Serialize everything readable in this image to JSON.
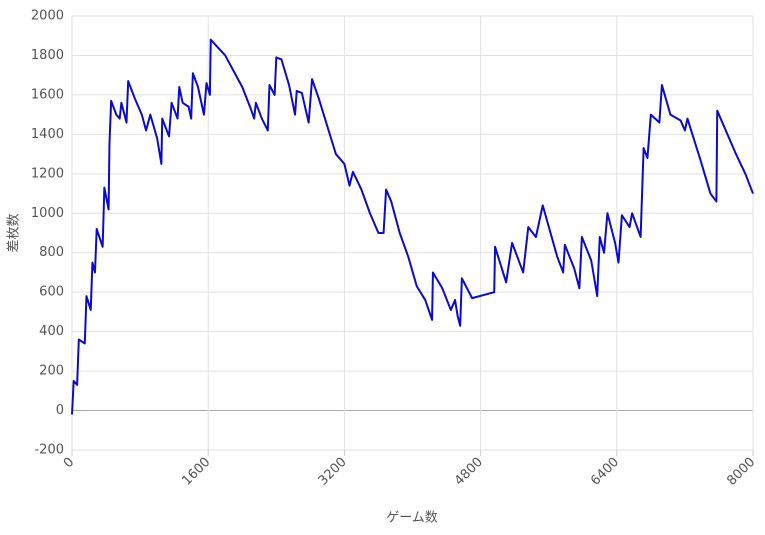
{
  "chart_data": {
    "type": "line",
    "x_label": "ゲーム数",
    "y_label": "差枚数",
    "xlim": [
      0,
      8000
    ],
    "xticks": [
      0,
      1600,
      3200,
      4800,
      6400,
      8000
    ],
    "ylim": [
      -200,
      2000
    ],
    "yticks": [
      -200,
      0,
      200,
      400,
      600,
      800,
      1000,
      1200,
      1400,
      1600,
      1800,
      2000
    ],
    "grid": true,
    "x": [
      0,
      20,
      60,
      80,
      150,
      170,
      220,
      240,
      270,
      290,
      360,
      380,
      430,
      440,
      460,
      520,
      560,
      580,
      640,
      660,
      740,
      820,
      870,
      920,
      1000,
      1050,
      1060,
      1140,
      1170,
      1240,
      1260,
      1300,
      1370,
      1400,
      1420,
      1480,
      1550,
      1580,
      1620,
      1630,
      1800,
      1900,
      2000,
      2100,
      2140,
      2160,
      2230,
      2300,
      2320,
      2380,
      2400,
      2460,
      2550,
      2620,
      2640,
      2700,
      2780,
      2820,
      2900,
      3000,
      3100,
      3200,
      3260,
      3300,
      3400,
      3500,
      3600,
      3660,
      3690,
      3750,
      3850,
      3950,
      4050,
      4150,
      4230,
      4240,
      4350,
      4450,
      4500,
      4530,
      4560,
      4580,
      4700,
      4960,
      4970,
      5100,
      5170,
      5300,
      5360,
      5450,
      5530,
      5700,
      5770,
      5790,
      5900,
      5960,
      5990,
      6100,
      6170,
      6200,
      6250,
      6290,
      6380,
      6420,
      6460,
      6550,
      6580,
      6680,
      6715,
      6760,
      6800,
      6900,
      6930,
      7030,
      7150,
      7200,
      7230,
      7390,
      7500,
      7570,
      7580,
      7800,
      7910,
      8000
    ],
    "series": [
      {
        "name": "差枚数",
        "color": "#0a0ad0",
        "values": [
          -20,
          150,
          130,
          360,
          340,
          580,
          510,
          750,
          700,
          920,
          830,
          1130,
          1020,
          1350,
          1570,
          1500,
          1480,
          1560,
          1460,
          1670,
          1580,
          1500,
          1420,
          1500,
          1380,
          1250,
          1480,
          1390,
          1560,
          1480,
          1640,
          1560,
          1540,
          1480,
          1710,
          1640,
          1500,
          1660,
          1600,
          1880,
          1800,
          1720,
          1640,
          1530,
          1480,
          1560,
          1480,
          1420,
          1650,
          1600,
          1790,
          1780,
          1650,
          1500,
          1620,
          1610,
          1460,
          1680,
          1580,
          1440,
          1300,
          1250,
          1140,
          1210,
          1120,
          1000,
          900,
          900,
          1120,
          1060,
          900,
          780,
          630,
          560,
          460,
          700,
          620,
          510,
          560,
          480,
          430,
          670,
          570,
          600,
          830,
          650,
          850,
          700,
          930,
          880,
          1040,
          780,
          700,
          840,
          720,
          620,
          880,
          760,
          580,
          880,
          800,
          1000,
          850,
          750,
          990,
          930,
          1000,
          880,
          1330,
          1280,
          1500,
          1460,
          1650,
          1500,
          1470,
          1420,
          1480,
          1260,
          1100,
          1060,
          1520,
          1300,
          1200,
          1100
        ]
      }
    ]
  }
}
